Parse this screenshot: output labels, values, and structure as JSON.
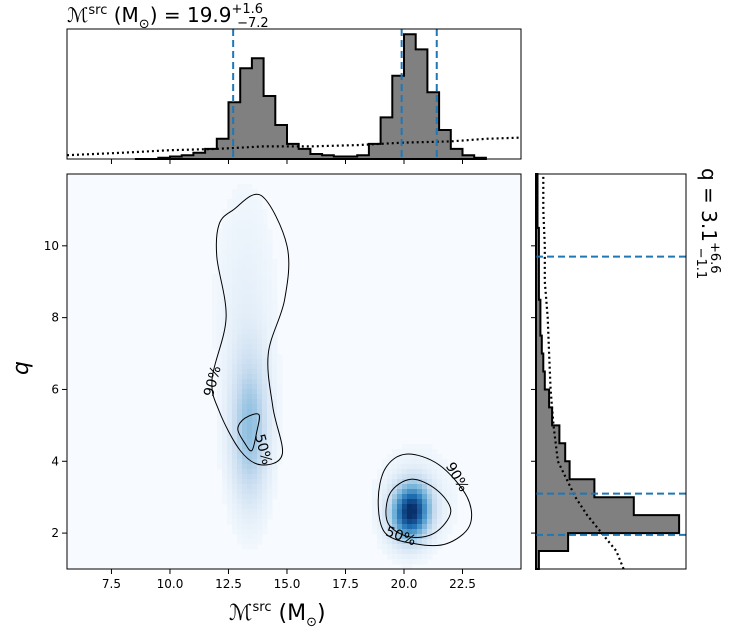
{
  "title": {
    "prefix": "ℳ",
    "sup": "src",
    "unit_open": " (M",
    "unit_sub": "⊙",
    "unit_close": ") = 19.9",
    "err_plus": "+1.6",
    "err_minus": "−7.2"
  },
  "right_title": {
    "text": "q = 3.1",
    "err_plus": "+6.6",
    "err_minus": "−1.1"
  },
  "xlabel": {
    "prefix": "ℳ",
    "sup": "src",
    "unit_open": " (M",
    "unit_sub": "⊙",
    "unit_close": ")"
  },
  "ylabel": "q",
  "chart_data": [
    {
      "type": "heatmap",
      "panel": "joint",
      "xlim": [
        5.6,
        25.0
      ],
      "ylim": [
        1.0,
        12.0
      ],
      "xticks": [
        7.5,
        10.0,
        12.5,
        15.0,
        17.5,
        20.0,
        22.5
      ],
      "xtick_labels": [
        "7.5",
        "10.0",
        "12.5",
        "15.0",
        "17.5",
        "20.0",
        "22.5"
      ],
      "yticks": [
        2,
        4,
        6,
        8,
        10
      ],
      "ytick_labels": [
        "2",
        "4",
        "6",
        "8",
        "10"
      ],
      "colormap": "Blues",
      "density_modes": [
        {
          "x": 20.3,
          "y": 2.6,
          "weight": 1.0
        },
        {
          "x": 13.4,
          "y": 4.9,
          "weight": 0.35
        }
      ],
      "contours": [
        {
          "label": "90%",
          "regions": [
            [
              [
                12.7,
                11.0
              ],
              [
                13.9,
                11.4
              ],
              [
                15.0,
                10.0
              ],
              [
                14.9,
                8.5
              ],
              [
                14.2,
                7.0
              ],
              [
                14.4,
                5.5
              ],
              [
                14.8,
                4.2
              ],
              [
                13.9,
                3.9
              ],
              [
                13.0,
                4.3
              ],
              [
                12.1,
                5.4
              ],
              [
                11.8,
                6.3
              ],
              [
                12.4,
                8.0
              ],
              [
                12.0,
                9.7
              ],
              [
                12.1,
                10.6
              ]
            ],
            [
              [
                20.1,
                4.2
              ],
              [
                21.5,
                3.9
              ],
              [
                22.7,
                3.0
              ],
              [
                22.8,
                2.2
              ],
              [
                21.8,
                1.7
              ],
              [
                20.5,
                1.7
              ],
              [
                19.2,
                2.0
              ],
              [
                18.9,
                2.9
              ],
              [
                19.2,
                3.8
              ]
            ]
          ],
          "label_pos": [
            [
              12.0,
              6.2
            ],
            [
              22.1,
              3.5
            ]
          ]
        },
        {
          "label": "50%",
          "regions": [
            [
              [
                13.2,
                5.2
              ],
              [
                13.8,
                5.3
              ],
              [
                13.7,
                4.8
              ],
              [
                13.5,
                4.3
              ],
              [
                13.2,
                4.5
              ],
              [
                12.9,
                4.9
              ]
            ],
            [
              [
                20.3,
                3.5
              ],
              [
                21.4,
                3.2
              ],
              [
                22.0,
                2.6
              ],
              [
                21.3,
                2.0
              ],
              [
                20.2,
                1.9
              ],
              [
                19.3,
                2.3
              ],
              [
                19.4,
                3.1
              ]
            ]
          ],
          "label_pos": [
            [
              13.8,
              4.3
            ],
            [
              19.8,
              1.8
            ]
          ]
        }
      ]
    },
    {
      "type": "histogram",
      "panel": "top",
      "variable": "Mc_src",
      "xlim": [
        5.6,
        25.0
      ],
      "bin_edges": [
        8.5,
        9.0,
        9.5,
        10.0,
        10.5,
        11.0,
        11.5,
        12.0,
        12.5,
        13.0,
        13.5,
        14.0,
        14.5,
        15.0,
        15.5,
        16.0,
        16.5,
        17.0,
        17.5,
        18.0,
        18.5,
        19.0,
        19.5,
        20.0,
        20.5,
        21.0,
        21.5,
        22.0,
        22.5,
        23.0,
        23.5
      ],
      "values": [
        0,
        0,
        0.01,
        0.02,
        0.03,
        0.05,
        0.08,
        0.16,
        0.45,
        0.72,
        0.8,
        0.5,
        0.27,
        0.12,
        0.08,
        0.04,
        0.03,
        0.02,
        0.02,
        0.03,
        0.12,
        0.33,
        0.66,
        0.99,
        0.87,
        0.53,
        0.23,
        0.08,
        0.03,
        0.01
      ],
      "prior_line": {
        "x": [
          5.6,
          8,
          10,
          12,
          14,
          16,
          18,
          20,
          22,
          23.5,
          25.0
        ],
        "y": [
          0.03,
          0.05,
          0.07,
          0.08,
          0.1,
          0.1,
          0.11,
          0.13,
          0.14,
          0.16,
          0.17
        ]
      },
      "quantile_lines": [
        12.7,
        19.9,
        21.4
      ]
    },
    {
      "type": "histogram",
      "panel": "right",
      "orientation": "horizontal",
      "variable": "q",
      "ylim": [
        1.0,
        12.0
      ],
      "bin_edges": [
        1.0,
        1.5,
        2.0,
        2.5,
        3.0,
        3.5,
        4.0,
        4.5,
        5.0,
        5.5,
        6.0,
        6.5,
        7.0,
        7.5,
        8.0,
        8.5,
        9.0,
        9.5,
        10.0,
        10.5,
        11.0,
        11.5,
        12.0
      ],
      "values": [
        0.02,
        0.22,
        0.98,
        0.67,
        0.4,
        0.23,
        0.2,
        0.16,
        0.11,
        0.09,
        0.06,
        0.05,
        0.04,
        0.03,
        0.03,
        0.02,
        0.02,
        0.02,
        0.02,
        0.01,
        0.01,
        0.01
      ],
      "prior_line": {
        "y": [
          1.0,
          1.5,
          2.0,
          2.5,
          3.0,
          4.0,
          5.0,
          6.0,
          7.0,
          8.0,
          9.0,
          10.0,
          11.0,
          12.0
        ],
        "x": [
          0.6,
          0.55,
          0.45,
          0.35,
          0.27,
          0.15,
          0.12,
          0.1,
          0.09,
          0.08,
          0.06,
          0.06,
          0.05,
          0.05
        ]
      },
      "quantile_lines": [
        1.95,
        3.1,
        9.7
      ]
    }
  ],
  "colors": {
    "hist_fill": "#808080",
    "hist_edge": "#000000",
    "quantile": "#1f77b4",
    "contour": "#000000",
    "density_max": "#08306b"
  }
}
